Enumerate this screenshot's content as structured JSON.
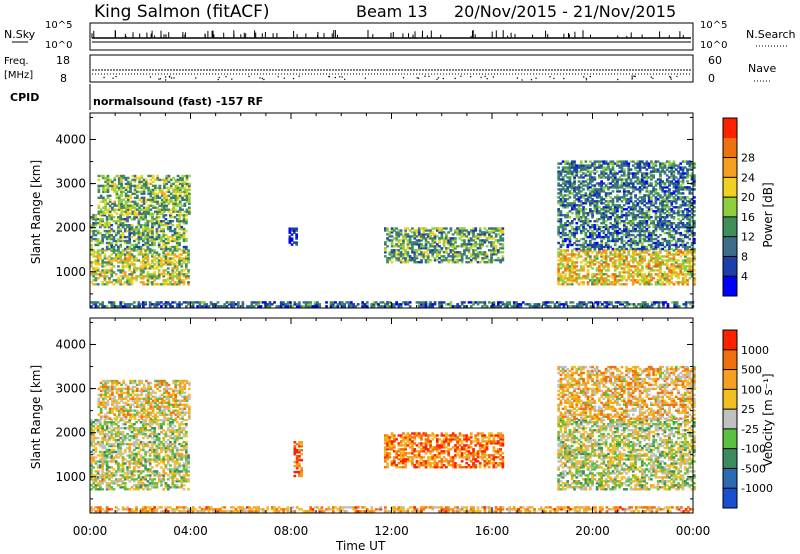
{
  "header": {
    "station": "King Salmon (fitACF)",
    "beam": "Beam 13",
    "date_range": "20/Nov/2015 - 21/Nov/2015"
  },
  "status_panels": {
    "nsky_label": "N.Sky",
    "nsearch_label": "N.Search",
    "log_top": "10^5",
    "log_bottom": "10^0",
    "freq_label": "Freq.",
    "freq_unit": "[MHz]",
    "freq_ticks": [
      "18",
      "8"
    ],
    "nave_label": "Nave",
    "nave_ticks": [
      "60",
      "0"
    ],
    "cpid_label": "CPID",
    "cpid_text": "normalsound (fast) -157 RF"
  },
  "chart_data": [
    {
      "type": "heatmap",
      "name": "power",
      "ylabel": "Slant Range [km]",
      "yticks": [
        "1000",
        "2000",
        "3000",
        "4000"
      ],
      "ylim": [
        180,
        4600
      ],
      "xlim_hours": [
        0,
        24
      ],
      "colorbar_label": "Power [dB]",
      "colorbar_ticks": [
        "4",
        "8",
        "12",
        "16",
        "20",
        "24",
        "28"
      ],
      "colorbar_colors": [
        "#0000ff",
        "#1a3fa8",
        "#3c6e8a",
        "#3f8f5a",
        "#8fcf3f",
        "#f0d020",
        "#f5a020",
        "#f07010",
        "#ff2000"
      ],
      "echo_regions": [
        {
          "t0": 0.0,
          "t1": 3.9,
          "r0": 700,
          "r1": 1500,
          "level": 0.55
        },
        {
          "t0": 0.0,
          "t1": 3.8,
          "r0": 1500,
          "r1": 2300,
          "level": 0.4
        },
        {
          "t0": 0.3,
          "t1": 3.9,
          "r0": 2300,
          "r1": 3200,
          "level": 0.45
        },
        {
          "t0": 7.9,
          "t1": 8.2,
          "r0": 1600,
          "r1": 2000,
          "level": 0.1
        },
        {
          "t0": 11.7,
          "t1": 16.4,
          "r0": 1200,
          "r1": 2000,
          "level": 0.4
        },
        {
          "t0": 18.6,
          "t1": 24.0,
          "r0": 700,
          "r1": 1500,
          "level": 0.65
        },
        {
          "t0": 18.6,
          "t1": 24.0,
          "r0": 1500,
          "r1": 3500,
          "level": 0.3
        },
        {
          "t0": 0.0,
          "t1": 24.0,
          "r0": 200,
          "r1": 330,
          "level": 0.25
        }
      ]
    },
    {
      "type": "heatmap",
      "name": "velocity",
      "ylabel": "Slant Range [km]",
      "yticks": [
        "1000",
        "2000",
        "3000",
        "4000"
      ],
      "ylim": [
        180,
        4600
      ],
      "xlim_hours": [
        0,
        24
      ],
      "colorbar_label": "Velocity [m s⁻¹]",
      "colorbar_ticks": [
        "1000",
        "500",
        "100",
        "25",
        "-25",
        "-100",
        "-500",
        "-1000"
      ],
      "colorbar_colors": [
        "#1a4fd0",
        "#2a6ab0",
        "#3c8a60",
        "#5ac040",
        "#c0c0c0",
        "#f0c020",
        "#f5a020",
        "#f07010",
        "#ff2000"
      ],
      "echo_regions": [
        {
          "t0": 0.0,
          "t1": 3.9,
          "r0": 700,
          "r1": 1500,
          "level": 0.5
        },
        {
          "t0": 0.0,
          "t1": 3.8,
          "r0": 1500,
          "r1": 2300,
          "level": 0.5
        },
        {
          "t0": 0.3,
          "t1": 3.9,
          "r0": 2300,
          "r1": 3200,
          "level": 0.6
        },
        {
          "t0": 8.1,
          "t1": 8.4,
          "r0": 1000,
          "r1": 1800,
          "level": 0.85
        },
        {
          "t0": 11.7,
          "t1": 16.4,
          "r0": 1200,
          "r1": 2000,
          "level": 0.8
        },
        {
          "t0": 18.6,
          "t1": 24.0,
          "r0": 700,
          "r1": 1500,
          "level": 0.5
        },
        {
          "t0": 18.6,
          "t1": 24.0,
          "r0": 1500,
          "r1": 2300,
          "level": 0.5
        },
        {
          "t0": 18.6,
          "t1": 24.0,
          "r0": 2300,
          "r1": 3500,
          "level": 0.65
        },
        {
          "t0": 0.0,
          "t1": 24.0,
          "r0": 200,
          "r1": 330,
          "level": 0.7
        }
      ]
    }
  ],
  "xaxis": {
    "ticks": [
      "00:00",
      "04:00",
      "08:00",
      "12:00",
      "16:00",
      "20:00",
      "00:00"
    ],
    "label": "Time UT"
  }
}
